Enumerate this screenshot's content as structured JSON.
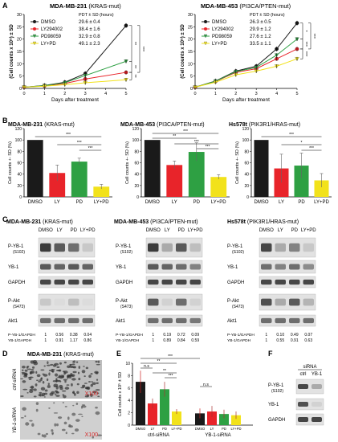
{
  "panelA": {
    "letter": "A",
    "left": {
      "title": "MDA-MB-231",
      "title_note": "(KRAS-mut)",
      "ylabel": "(Cell counts x 10⁵) ± SD",
      "xlabel": "Days after treatment",
      "legend_header": "PDT ± SD (hours)",
      "legend": [
        {
          "name": "DMSO",
          "value": "29.6 ± 0.4"
        },
        {
          "name": "LY294002",
          "value": "38.4 ± 1.6"
        },
        {
          "name": "PD98059",
          "value": "32.9 ± 0.8"
        },
        {
          "name": "LY+PD",
          "value": "49.1 ± 2.3"
        }
      ],
      "sig": [
        "**",
        "**",
        "***",
        "**"
      ]
    },
    "right": {
      "title": "MDA-MB-453",
      "title_note": "(PI3CA/PTEN-mut)",
      "ylabel": "(Cell counts x 10⁵) ± SD",
      "xlabel": "Days after treatment",
      "legend_header": "PDT ± SD (hours)",
      "legend": [
        {
          "name": "DMSO",
          "value": "26.3 ± 0.5"
        },
        {
          "name": "LY294002",
          "value": "29.9 ± 1.2"
        },
        {
          "name": "PD98059",
          "value": "27.6 ± 1.2"
        },
        {
          "name": "LY+PD",
          "value": "33.5 ± 1.1"
        }
      ],
      "sig": [
        "*",
        "***",
        "***",
        "***"
      ]
    }
  },
  "panelB": {
    "letter": "B",
    "ylabel": "Cell counts +- SD (%)",
    "charts": [
      {
        "title": "MDA-MB-231",
        "title_note": "(KRAS-mut)",
        "sig": [
          "***",
          "***",
          "***"
        ]
      },
      {
        "title": "MDA-MB-453",
        "title_note": "(PI3CA/PTEN-mut)",
        "sig": [
          "***",
          "**",
          "***",
          "***"
        ]
      },
      {
        "title": "Hs578t",
        "title_note": "(PIK3R1/HRAS-mut)",
        "sig": [
          "***",
          "*",
          "***"
        ]
      }
    ]
  },
  "panelC": {
    "letter": "C",
    "blots": [
      {
        "title": "MDA-MB-231",
        "title_note": "(KRAS-mut)",
        "lanes": [
          "DMSO",
          "LY",
          "PD",
          "LY+PD"
        ],
        "rows": [
          "P-YB-1",
          "YB-1",
          "GAPDH",
          "P-Akt",
          "Akt1"
        ],
        "row_subs": [
          "(S102)",
          "",
          "",
          "(S473)",
          ""
        ],
        "ratio_labels": [
          "P-YB-1/GAPDH",
          "YB-1/GAPDH"
        ],
        "ratios": [
          [
            "1",
            "0.56",
            "0.38",
            "0.04"
          ],
          [
            "1",
            "0.91",
            "1.17",
            "0.86"
          ]
        ]
      },
      {
        "title": "MDA-MB-453",
        "title_note": "(PI3CA/PTEN-mut)",
        "lanes": [
          "DMSO",
          "LY",
          "PD",
          "LY+PD"
        ],
        "rows": [
          "P-YB-1",
          "YB-1",
          "GAPDH",
          "P-Akt",
          "Akt1"
        ],
        "row_subs": [
          "(S102)",
          "",
          "",
          "(S473)",
          ""
        ],
        "ratio_labels": [
          "P-YB-1/GAPDH",
          "YB-1/GAPDH"
        ],
        "ratios": [
          [
            "1",
            "0.19",
            "0.72",
            "0.09"
          ],
          [
            "1",
            "0.89",
            "0.84",
            "0.59"
          ]
        ]
      },
      {
        "title": "Hs578t",
        "title_note": "(PIK3R1/HRAS-mut)",
        "lanes": [
          "DMSO",
          "LY",
          "PD",
          "LY+PD"
        ],
        "rows": [
          "P-YB-1",
          "YB-1",
          "GAPDH",
          "P-Akt",
          "Akt1"
        ],
        "row_subs": [
          "(S102)",
          "",
          "",
          "(S473)",
          ""
        ],
        "ratio_labels": [
          "P-YB-1/GAPDH",
          "YB-1/GAPDH"
        ],
        "ratios": [
          [
            "1",
            "0.10",
            "0.49",
            "0.07"
          ],
          [
            "1",
            "0.55",
            "0.91",
            "0.63"
          ]
        ]
      }
    ]
  },
  "panelD": {
    "letter": "D",
    "title": "MDA-MB-231",
    "title_note": "(KRAS-mut)",
    "row_labels": [
      "ctrl-siRNA",
      "YB-1-siRNA"
    ],
    "mag": "X100"
  },
  "panelE": {
    "letter": "E",
    "ylabel": "Cell counts x 10⁵ ± SD",
    "xgroups": [
      "ctrl-siRNA",
      "YB-1-siRNA"
    ],
    "ticks": [
      "DMSO",
      "LY",
      "PD",
      "LY+PD",
      "DMSO",
      "LY",
      "PD",
      "LY+PD"
    ],
    "sig": [
      "***",
      "**",
      "n.s",
      "**",
      "***",
      "n.s"
    ]
  },
  "panelF": {
    "letter": "F",
    "header": "siRNA",
    "lanes": [
      "ctrl",
      "YB-1"
    ],
    "rows": [
      "P-YB-1",
      "YB-1",
      "GAPDH"
    ],
    "row_subs": [
      "(S102)",
      "",
      ""
    ]
  },
  "colors": {
    "dmso": "#1a1a1a",
    "ly": "#e8242a",
    "pd": "#2ea043",
    "lypd": "#f2e21b"
  },
  "chart_data": [
    {
      "type": "line",
      "id": "A-left",
      "x": [
        0,
        1,
        2,
        3,
        5
      ],
      "xlim": [
        0,
        5
      ],
      "ylim": [
        0,
        30
      ],
      "yticks": [
        0,
        5,
        10,
        15,
        20,
        25,
        30
      ],
      "series": [
        {
          "name": "DMSO",
          "values": [
            0.5,
            1.2,
            2.5,
            6,
            25.5
          ]
        },
        {
          "name": "LY294002",
          "values": [
            0.5,
            1.0,
            2.0,
            3.8,
            6.5
          ]
        },
        {
          "name": "PD98059",
          "values": [
            0.5,
            1.1,
            2.3,
            5.2,
            11
          ]
        },
        {
          "name": "LY+PD",
          "values": [
            0.5,
            0.9,
            1.5,
            2.3,
            3.5
          ]
        }
      ]
    },
    {
      "type": "line",
      "id": "A-right",
      "x": [
        0,
        1,
        2,
        3,
        4,
        5
      ],
      "xlim": [
        0,
        5
      ],
      "ylim": [
        0,
        30
      ],
      "yticks": [
        0,
        5,
        10,
        15,
        20,
        25,
        30
      ],
      "series": [
        {
          "name": "DMSO",
          "values": [
            0.5,
            3,
            7,
            9,
            16,
            26.5
          ]
        },
        {
          "name": "LY294002",
          "values": [
            0.5,
            2.8,
            6.5,
            8,
            12,
            16
          ]
        },
        {
          "name": "PD98059",
          "values": [
            0.5,
            2.9,
            6.8,
            8.5,
            13.5,
            20
          ]
        },
        {
          "name": "LY+PD",
          "values": [
            0.5,
            2.5,
            5.5,
            7,
            9,
            12
          ]
        }
      ]
    },
    {
      "type": "bar",
      "id": "B-1",
      "categories": [
        "DMSO",
        "LY",
        "PD",
        "LY+PD"
      ],
      "values": [
        100,
        42,
        62,
        18
      ],
      "err": [
        0,
        14,
        6,
        4
      ],
      "ylim": [
        0,
        120
      ],
      "yticks": [
        0,
        20,
        40,
        60,
        80,
        100,
        120
      ]
    },
    {
      "type": "bar",
      "id": "B-2",
      "categories": [
        "DMSO",
        "LY",
        "PD",
        "LY+PD"
      ],
      "values": [
        100,
        56,
        79,
        35
      ],
      "err": [
        0,
        7,
        16,
        4
      ],
      "ylim": [
        0,
        120
      ],
      "yticks": [
        0,
        20,
        40,
        60,
        80,
        100,
        120
      ]
    },
    {
      "type": "bar",
      "id": "B-3",
      "categories": [
        "DMSO",
        "LY",
        "PD",
        "LY+PD"
      ],
      "values": [
        100,
        50,
        55,
        29
      ],
      "err": [
        0,
        25,
        22,
        12
      ],
      "ylim": [
        0,
        120
      ],
      "yticks": [
        0,
        20,
        40,
        60,
        80,
        100,
        120
      ]
    },
    {
      "type": "bar",
      "id": "E",
      "categories": [
        "DMSO",
        "LY",
        "PD",
        "LY+PD",
        "DMSO",
        "LY",
        "PD",
        "LY+PD"
      ],
      "values": [
        7,
        3.5,
        5.8,
        2.2,
        1.9,
        2.2,
        1.8,
        1.6
      ],
      "err": [
        1.8,
        0.8,
        1.2,
        0.4,
        0.8,
        0.9,
        0.7,
        0.6
      ],
      "ylim": [
        0,
        10
      ],
      "yticks": [
        0,
        2,
        4,
        6,
        8,
        10
      ]
    }
  ]
}
